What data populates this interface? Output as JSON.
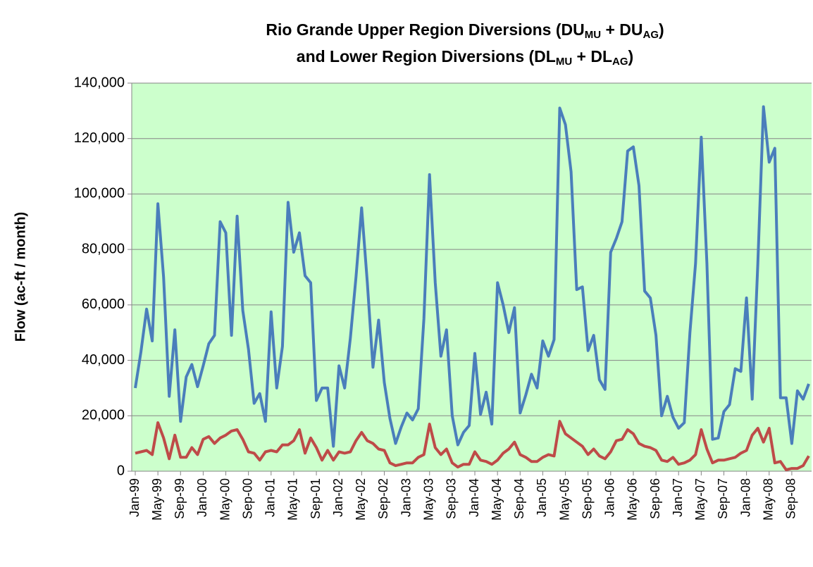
{
  "chart_data": {
    "type": "line",
    "title": [
      [
        "Rio Grande Upper Region Diversions (DU",
        "MU",
        " + DU",
        "AG",
        ")"
      ],
      [
        "and Lower Region Diversions (DL",
        "MU",
        " + DL",
        "AG",
        ")"
      ]
    ],
    "y_label": "Flow (ac-ft / month)",
    "categories": [
      "Jan-99",
      null,
      null,
      null,
      "May-99",
      null,
      null,
      null,
      "Sep-99",
      null,
      null,
      null,
      "Jan-00",
      null,
      null,
      null,
      "May-00",
      null,
      null,
      null,
      "Sep-00",
      null,
      null,
      null,
      "Jan-01",
      null,
      null,
      null,
      "May-01",
      null,
      null,
      null,
      "Sep-01",
      null,
      null,
      null,
      "Jan-02",
      null,
      null,
      null,
      "May-02",
      null,
      null,
      null,
      "Sep-02",
      null,
      null,
      null,
      "Jan-03",
      null,
      null,
      null,
      "May-03",
      null,
      null,
      null,
      "Sep-03",
      null,
      null,
      null,
      "Jan-04",
      null,
      null,
      null,
      "May-04",
      null,
      null,
      null,
      "Sep-04",
      null,
      null,
      null,
      "Jan-05",
      null,
      null,
      null,
      "May-05",
      null,
      null,
      null,
      "Sep-05",
      null,
      null,
      null,
      "Jan-06",
      null,
      null,
      null,
      "May-06",
      null,
      null,
      null,
      "Sep-06",
      null,
      null,
      null,
      "Jan-07",
      null,
      null,
      null,
      "May-07",
      null,
      null,
      null,
      "Sep-07",
      null,
      null,
      null,
      "Jan-08",
      null,
      null,
      null,
      "May-08",
      null,
      null,
      null,
      "Sep-08",
      null,
      null,
      null
    ],
    "series": [
      {
        "color": "#4a7ebb",
        "values": [
          30000,
          43000,
          58500,
          47000,
          96500,
          70000,
          27000,
          51000,
          18000,
          34000,
          38500,
          30500,
          38000,
          46000,
          49000,
          90000,
          86000,
          49000,
          92000,
          58000,
          44000,
          24500,
          28000,
          18000,
          57500,
          30000,
          45000,
          97000,
          79000,
          86000,
          70500,
          68000,
          25500,
          30000,
          30000,
          9000,
          38000,
          30000,
          48000,
          70000,
          95000,
          68000,
          37500,
          54500,
          32000,
          19000,
          10000,
          16000,
          21000,
          18500,
          22500,
          55000,
          107000,
          68000,
          41500,
          51000,
          20000,
          9500,
          14000,
          16500,
          42500,
          20500,
          28500,
          17000,
          68000,
          60000,
          50000,
          59000,
          21000,
          27500,
          35000,
          30000,
          47000,
          41500,
          47500,
          131000,
          125000,
          108000,
          65500,
          66500,
          43500,
          49000,
          33000,
          29500,
          79000,
          84000,
          90000,
          115500,
          117000,
          103000,
          65000,
          62500,
          49000,
          20000,
          27000,
          19500,
          15500,
          17500,
          50000,
          75000,
          120500,
          75000,
          11500,
          12000,
          21500,
          24000,
          37000,
          36000,
          62500,
          26000,
          75000,
          131500,
          111500,
          116500,
          26500,
          26500,
          10000,
          29000,
          26000,
          31500
        ]
      },
      {
        "color": "#be4b48",
        "values": [
          6500,
          7000,
          7500,
          6000,
          17500,
          12000,
          4500,
          13000,
          5000,
          5000,
          8500,
          6000,
          11500,
          12500,
          10000,
          12000,
          13000,
          14500,
          15000,
          11500,
          7000,
          6500,
          4000,
          7000,
          7500,
          7000,
          9500,
          9500,
          11000,
          15000,
          6500,
          12000,
          8500,
          4000,
          7500,
          4000,
          7000,
          6500,
          7000,
          11000,
          14000,
          11000,
          10000,
          8000,
          7500,
          3000,
          2000,
          2500,
          3000,
          3000,
          5000,
          6000,
          17000,
          8500,
          6000,
          8000,
          3000,
          1500,
          2500,
          2500,
          7000,
          4000,
          3500,
          2500,
          4000,
          6500,
          8000,
          10500,
          6000,
          5000,
          3500,
          3500,
          5000,
          6000,
          5500,
          18000,
          13500,
          12000,
          10500,
          9000,
          6000,
          8000,
          5500,
          4500,
          7000,
          11000,
          11500,
          15000,
          13500,
          10000,
          9000,
          8500,
          7500,
          4000,
          3500,
          5000,
          2500,
          3000,
          4000,
          6000,
          15000,
          8000,
          3000,
          4000,
          4000,
          4500,
          5000,
          6500,
          7500,
          13000,
          15500,
          10500,
          15500,
          3000,
          3500,
          500,
          1000,
          1000,
          2000,
          5500
        ]
      }
    ],
    "ylim": [
      0,
      140000
    ],
    "yticks": [
      0,
      {
        "value": 20000,
        "label": "20,000"
      },
      {
        "value": 40000,
        "label": "40,000"
      },
      {
        "value": 60000,
        "label": "60,000"
      },
      {
        "value": 80000,
        "label": "80,000"
      },
      {
        "value": 100000,
        "label": "100,000"
      },
      {
        "value": 120000,
        "label": "120,000"
      },
      {
        "value": 140000,
        "label": "140,000"
      }
    ],
    "grid": true,
    "plot_background": "#ccffcc"
  }
}
